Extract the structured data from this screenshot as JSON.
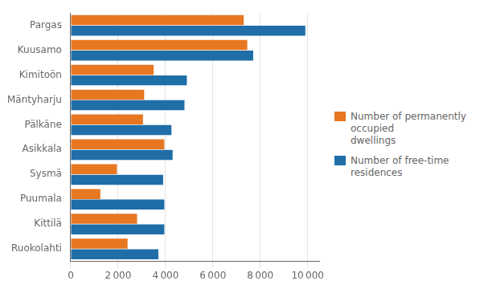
{
  "chart_data": {
    "type": "bar",
    "orientation": "horizontal",
    "categories": [
      "Ruokolahti",
      "Kittilä",
      "Puumala",
      "Sysmä",
      "Asikkala",
      "Pälkäne",
      "Mäntyharju",
      "Kimitoön",
      "Kuusamo",
      "Pargas"
    ],
    "series": [
      {
        "name": "Number of permanently occupied\ndwellings",
        "color": "#E87722",
        "values": [
          2400,
          2800,
          1250,
          1950,
          3950,
          3050,
          3100,
          3500,
          7450,
          7300
        ]
      },
      {
        "name": "Number of free-time residences",
        "color": "#1F6EA8",
        "values": [
          3700,
          3950,
          3950,
          3900,
          4300,
          4250,
          4800,
          4900,
          7700,
          9900
        ]
      }
    ],
    "xlim": [
      0,
      10500
    ],
    "xticks": [
      0,
      {
        "value": 2000,
        "label": "2 000"
      },
      {
        "value": 4000,
        "label": "4 000"
      },
      {
        "value": 6000,
        "label": "6 000"
      },
      {
        "value": 8000,
        "label": "8 000"
      },
      {
        "value": 10000,
        "label": "10 000"
      }
    ],
    "grid": true,
    "legend": "right"
  }
}
